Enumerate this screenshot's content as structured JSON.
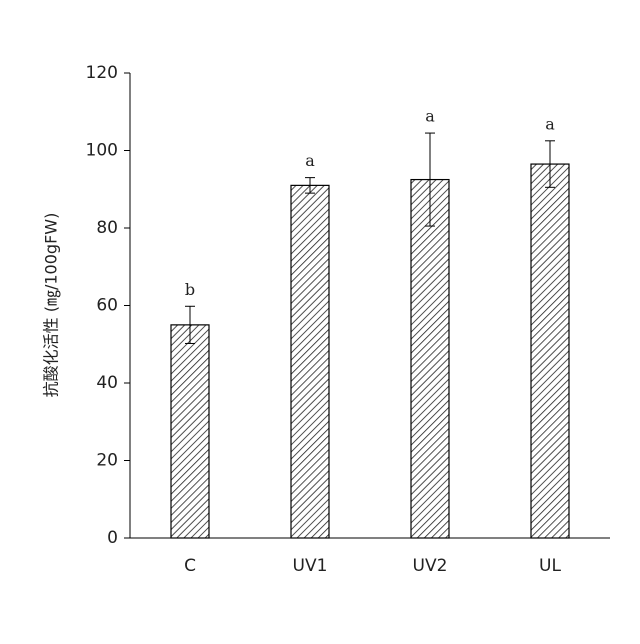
{
  "chart_data": {
    "type": "bar",
    "y_label": "抗酸化活性 (㎎/100gFW)",
    "categories": [
      "C",
      "UV1",
      "UV2",
      "UL"
    ],
    "values": [
      55,
      91,
      92.5,
      96.5
    ],
    "errors": [
      4.8,
      2,
      12,
      6
    ],
    "annotations": [
      "b",
      "a",
      "a",
      "a"
    ],
    "color": "#000000",
    "ylim": [
      0,
      120
    ],
    "yticks": [
      0,
      20,
      40,
      60,
      80,
      100,
      120
    ],
    "grid": false
  }
}
